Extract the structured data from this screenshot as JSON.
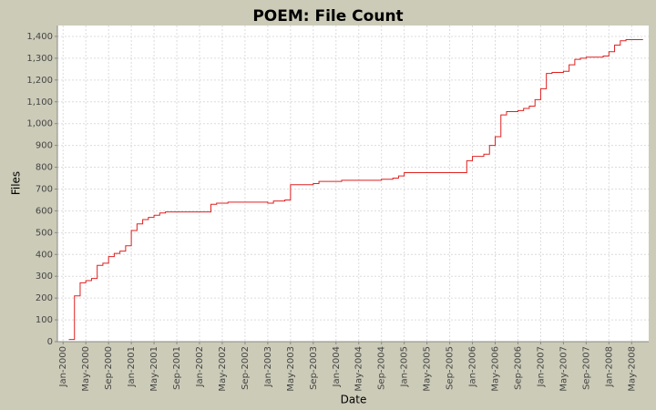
{
  "chart_data": {
    "type": "step-line",
    "title": "POEM: File Count",
    "x_label": "Date",
    "y_label": "Files",
    "x": [
      "2000-02",
      "2000-03",
      "2000-04",
      "2000-05",
      "2000-06",
      "2000-07",
      "2000-08",
      "2000-09",
      "2000-10",
      "2000-11",
      "2000-12",
      "2001-01",
      "2001-02",
      "2001-03",
      "2001-04",
      "2001-05",
      "2001-06",
      "2001-07",
      "2002-03",
      "2002-04",
      "2002-06",
      "2003-01",
      "2003-02",
      "2003-04",
      "2003-05",
      "2003-09",
      "2003-10",
      "2004-02",
      "2004-09",
      "2004-11",
      "2004-12",
      "2005-01",
      "2005-12",
      "2006-01",
      "2006-03",
      "2006-04",
      "2006-05",
      "2006-06",
      "2006-07",
      "2006-09",
      "2006-10",
      "2006-11",
      "2006-12",
      "2007-01",
      "2007-02",
      "2007-03",
      "2007-05",
      "2007-06",
      "2007-07",
      "2007-08",
      "2007-09",
      "2007-12",
      "2008-01",
      "2008-02",
      "2008-03",
      "2008-04",
      "2008-07"
    ],
    "series": [
      {
        "name": "Files",
        "color": "#e02020",
        "values": [
          10,
          210,
          270,
          280,
          290,
          350,
          360,
          390,
          405,
          415,
          440,
          510,
          540,
          560,
          570,
          580,
          590,
          595,
          630,
          635,
          640,
          635,
          645,
          650,
          720,
          725,
          735,
          740,
          745,
          750,
          760,
          775,
          830,
          850,
          860,
          900,
          940,
          1040,
          1055,
          1060,
          1070,
          1080,
          1110,
          1160,
          1230,
          1235,
          1240,
          1270,
          1295,
          1300,
          1305,
          1310,
          1330,
          1360,
          1380,
          1385,
          1385
        ]
      }
    ],
    "xlim": [
      "1999-12",
      "2008-08"
    ],
    "xticks": [
      {
        "value": "2000-01",
        "label": "Jan-2000"
      },
      {
        "value": "2000-05",
        "label": "May-2000"
      },
      {
        "value": "2000-09",
        "label": "Sep-2000"
      },
      {
        "value": "2001-01",
        "label": "Jan-2001"
      },
      {
        "value": "2001-05",
        "label": "May-2001"
      },
      {
        "value": "2001-09",
        "label": "Sep-2001"
      },
      {
        "value": "2002-01",
        "label": "Jan-2002"
      },
      {
        "value": "2002-05",
        "label": "May-2002"
      },
      {
        "value": "2002-09",
        "label": "Sep-2002"
      },
      {
        "value": "2003-01",
        "label": "Jan-2003"
      },
      {
        "value": "2003-05",
        "label": "May-2003"
      },
      {
        "value": "2003-09",
        "label": "Sep-2003"
      },
      {
        "value": "2004-01",
        "label": "Jan-2004"
      },
      {
        "value": "2004-05",
        "label": "May-2004"
      },
      {
        "value": "2004-09",
        "label": "Sep-2004"
      },
      {
        "value": "2005-01",
        "label": "Jan-2005"
      },
      {
        "value": "2005-05",
        "label": "May-2005"
      },
      {
        "value": "2005-09",
        "label": "Sep-2005"
      },
      {
        "value": "2006-01",
        "label": "Jan-2006"
      },
      {
        "value": "2006-05",
        "label": "May-2006"
      },
      {
        "value": "2006-09",
        "label": "Sep-2006"
      },
      {
        "value": "2007-01",
        "label": "Jan-2007"
      },
      {
        "value": "2007-05",
        "label": "May-2007"
      },
      {
        "value": "2007-09",
        "label": "Sep-2007"
      },
      {
        "value": "2008-01",
        "label": "Jan-2008"
      },
      {
        "value": "2008-05",
        "label": "May-2008"
      }
    ],
    "ylim": [
      0,
      1450
    ],
    "yticks": [
      0,
      100,
      200,
      300,
      400,
      500,
      600,
      700,
      800,
      900,
      {
        "value": 1000,
        "label": "1,000"
      },
      {
        "value": 1100,
        "label": "1,100"
      },
      {
        "value": 1200,
        "label": "1,200"
      },
      {
        "value": 1300,
        "label": "1,300"
      },
      {
        "value": 1400,
        "label": "1,400"
      }
    ],
    "grid": true
  }
}
